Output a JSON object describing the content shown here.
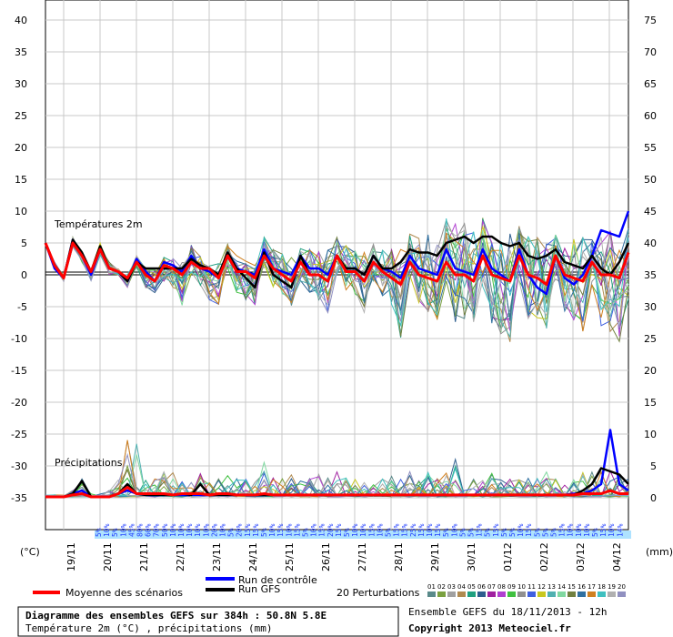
{
  "left_axis": {
    "unit": "(°C)",
    "ticks": [
      "40",
      "35",
      "30",
      "25",
      "20",
      "15",
      "10",
      "5",
      "0",
      "-5",
      "-10",
      "-15",
      "-20",
      "-25",
      "-30",
      "-35"
    ]
  },
  "right_axis": {
    "unit": "(mm)",
    "ticks": [
      "75",
      "70",
      "65",
      "60",
      "55",
      "50",
      "45",
      "40",
      "35",
      "30",
      "25",
      "20",
      "15",
      "10",
      "5",
      "0"
    ]
  },
  "date_labels": [
    "19/11",
    "20/11",
    "21/11",
    "22/11",
    "23/11",
    "24/11",
    "25/11",
    "26/11",
    "27/11",
    "28/11",
    "29/11",
    "30/11",
    "01/12",
    "02/12",
    "03/12",
    "04/12"
  ],
  "percent_labels": [
    "5%",
    "10%",
    "5%",
    "10%",
    "45%",
    "80%",
    "60%",
    "70%",
    "50%",
    "10%",
    "10%",
    "10%",
    "10%",
    "10%",
    "20%",
    "10%",
    "5%",
    "20%",
    "15%",
    "15%",
    "5%",
    "10%",
    "15%",
    "10%",
    "15%",
    "5%",
    "10%",
    "15%",
    "20%",
    "15%",
    "5%",
    "10%",
    "10%",
    "15%",
    "10%",
    "5%",
    "15%",
    "15%",
    "25%",
    "15%",
    "10%",
    "15%",
    "5%",
    "10%",
    "5%",
    "5%",
    "15%",
    "5%",
    "15%",
    "5%",
    "5%",
    "10%",
    "15%",
    "5%",
    "5%",
    "5%",
    "15%",
    "10%",
    "10%",
    "10%",
    "5%",
    "15%",
    "10%",
    "14%"
  ],
  "section_labels": {
    "temperature": "Températures 2m",
    "precipitation": "Précipitations"
  },
  "legend": {
    "mean": "Moyenne des scénarios",
    "control": "Run de contrôle",
    "gfs": "Run GFS",
    "perturbations": "20 Perturbations",
    "perturbation_numbers": [
      "01",
      "02",
      "03",
      "04",
      "05",
      "06",
      "07",
      "08",
      "09",
      "10",
      "11",
      "12",
      "13",
      "14",
      "15",
      "16",
      "17",
      "18",
      "19",
      "20"
    ],
    "perturbation_colors": [
      "#5a8a8a",
      "#7aa040",
      "#a0a0a0",
      "#b08a50",
      "#20a080",
      "#2e5e8e",
      "#a020a0",
      "#b040d0",
      "#40c040",
      "#909090",
      "#4060e0",
      "#c8c820",
      "#50b0b0",
      "#80d8a0",
      "#708040",
      "#3070a0",
      "#d08020",
      "#40c0c0",
      "#b0b0b0",
      "#9090c0"
    ],
    "colors": {
      "mean": "#ff0000",
      "control": "#0000ff",
      "gfs": "#000000"
    }
  },
  "footer": {
    "title": "Diagramme des ensembles GEFS sur 384h : 50.8N 5.8E",
    "subtitle": "Température 2m (°C) , précipitations (mm)",
    "run": "Ensemble GEFS du 18/11/2013 - 12h",
    "copyright": "Copyright 2013 Meteociel.fr"
  },
  "chart_data": {
    "type": "line",
    "x_unit": "6h steps from 18/11/2013 12h",
    "temperature": {
      "ylabel": "(°C)",
      "ylim": [
        -35,
        40
      ],
      "mean": [
        5,
        1.5,
        -0.5,
        5,
        3,
        0.5,
        4,
        1,
        0.5,
        -0.5,
        2,
        0,
        -1,
        1.5,
        1,
        0,
        2,
        1,
        1,
        -0.5,
        3,
        0.5,
        0.5,
        -0.5,
        3,
        1,
        0,
        -1,
        2,
        0,
        0,
        -1,
        3,
        0.5,
        0.5,
        -1,
        2,
        0.5,
        -0.5,
        -1.5,
        2,
        0,
        -0.5,
        -1,
        2,
        0,
        0,
        -1,
        3,
        0,
        -0.5,
        -1,
        3,
        0,
        -0.5,
        -1.5,
        3,
        0,
        -0.5,
        -1,
        2,
        0,
        0,
        -0.5,
        3.5
      ],
      "control": [
        5,
        1,
        -0.5,
        5.5,
        3,
        0,
        4,
        1,
        0.5,
        -1,
        2.5,
        0.5,
        -1,
        2,
        1.5,
        0.5,
        3,
        1,
        0.5,
        -0.5,
        3.5,
        1,
        0.5,
        0,
        4,
        1,
        0.5,
        0,
        3,
        1,
        1,
        0,
        3,
        1,
        1,
        0,
        3,
        1,
        0.5,
        -0.5,
        3,
        1,
        0.5,
        0,
        4,
        1,
        0.5,
        0,
        4,
        1,
        0,
        -1,
        4,
        0,
        -2,
        -3,
        3,
        -0.5,
        -1.5,
        0,
        3,
        7,
        6.5,
        6,
        10
      ],
      "gfs": [
        5,
        1.5,
        -0.5,
        5.5,
        3.5,
        0.5,
        4.5,
        1,
        0.5,
        -1,
        2,
        1,
        1,
        1,
        1,
        1,
        2.5,
        1.5,
        1,
        0,
        3.5,
        1,
        -0.5,
        -2,
        3.5,
        0,
        -1,
        -2,
        3,
        0,
        0,
        -1,
        3,
        1,
        1,
        0,
        3,
        1,
        1,
        2,
        4,
        3.5,
        3.5,
        3,
        5,
        5.5,
        6,
        5,
        6,
        6,
        5,
        4.5,
        5,
        3,
        2.5,
        3,
        4,
        2,
        1.5,
        1,
        3,
        1,
        0,
        2,
        5
      ]
    },
    "precipitation": {
      "ylabel": "(mm)",
      "ylim": [
        0,
        75
      ],
      "mean": [
        0,
        0,
        0,
        0.3,
        0.5,
        0,
        0,
        0,
        0.5,
        1.5,
        0.5,
        0.5,
        0.5,
        0.5,
        0.3,
        0.5,
        0.5,
        0.5,
        0.3,
        0.5,
        0.5,
        0.3,
        0.3,
        0.3,
        0.5,
        0.3,
        0.3,
        0.3,
        0.3,
        0.3,
        0.3,
        0.3,
        0.3,
        0.3,
        0.3,
        0.3,
        0.3,
        0.3,
        0.3,
        0.3,
        0.3,
        0.3,
        0.3,
        0.3,
        0.3,
        0.3,
        0.3,
        0.3,
        0.3,
        0.3,
        0.3,
        0.3,
        0.3,
        0.3,
        0.3,
        0.3,
        0.3,
        0.3,
        0.3,
        0.5,
        0.5,
        0.5,
        1,
        0.5,
        0.5
      ],
      "control": [
        0,
        0,
        0,
        0.5,
        1,
        0,
        0,
        0,
        0.5,
        1,
        0.5,
        0.3,
        0.3,
        0.3,
        0.3,
        0.3,
        0.3,
        0.3,
        0.3,
        0.3,
        0.3,
        0.3,
        0.3,
        0.3,
        0.3,
        0.3,
        0.3,
        0.3,
        0.3,
        0.3,
        0.3,
        0.3,
        0.3,
        0.3,
        0.3,
        0.3,
        0.3,
        0.3,
        0.3,
        0.3,
        0.3,
        0.3,
        0.3,
        0.3,
        0.3,
        0.3,
        0.3,
        0.3,
        0.3,
        0.3,
        0.3,
        0.3,
        0.3,
        0.3,
        0.3,
        0.3,
        0.3,
        0.3,
        0.5,
        0.5,
        1,
        2,
        10.5,
        2,
        1
      ],
      "gfs": [
        0,
        0,
        0,
        0.5,
        2.5,
        0,
        0,
        0,
        0.5,
        2,
        0.5,
        0.3,
        0.3,
        0.3,
        0.3,
        0.5,
        0.3,
        2,
        0.3,
        0.3,
        0.3,
        0.3,
        0.3,
        0.3,
        0.3,
        0.3,
        0.3,
        0.3,
        0.3,
        0.3,
        0.3,
        0.3,
        0.3,
        0.3,
        0.3,
        0.3,
        0.3,
        0.3,
        0.3,
        0.3,
        0.3,
        0.3,
        0.3,
        0.3,
        0.3,
        0.3,
        0.3,
        0.3,
        0.3,
        0.3,
        0.3,
        0.3,
        0.3,
        0.3,
        0.3,
        0.3,
        0.3,
        0.3,
        0.3,
        1,
        2,
        4.5,
        4,
        3.5,
        2
      ]
    },
    "perturbations": {
      "temperature_spread_max": [
        5,
        2,
        0,
        6,
        4,
        1,
        5,
        2,
        1,
        0,
        3,
        1,
        1,
        3,
        3,
        2,
        5,
        3,
        3,
        2,
        5,
        3,
        3,
        2,
        6,
        4,
        4,
        3,
        5,
        4,
        4,
        4,
        6,
        5,
        4,
        4,
        6,
        5,
        4,
        4,
        7,
        6,
        7,
        6,
        9,
        8,
        10,
        8,
        9,
        7,
        8,
        7,
        8,
        6,
        6,
        5,
        7,
        5,
        6,
        6,
        7,
        6,
        7,
        7,
        9
      ],
      "temperature_spread_min": [
        5,
        1,
        -1,
        4,
        2,
        -1,
        3,
        0,
        0,
        -2,
        1,
        -2,
        -3,
        -1,
        -2,
        -5,
        0,
        -2,
        -4,
        -5,
        1,
        -3,
        -4,
        -5,
        1,
        -2,
        -4,
        -5,
        -1,
        -3,
        -4,
        -6,
        0,
        -3,
        -4,
        -6,
        -1,
        -4,
        -5,
        -10,
        -2,
        -5,
        -6,
        -7,
        -1,
        -8,
        -7,
        -9,
        -2,
        -8,
        -10,
        -11,
        -1,
        -7,
        -8,
        -9,
        -1,
        -6,
        -8,
        -9,
        -2,
        -8,
        -9,
        -12,
        -4
      ],
      "precipitation_spread_max": [
        0,
        0,
        0,
        1,
        3,
        0.5,
        0.5,
        1,
        3,
        10,
        9,
        3,
        3,
        4,
        4,
        3,
        3,
        4,
        3,
        3,
        4,
        3,
        3,
        3,
        6,
        3,
        4,
        4,
        3,
        3,
        4,
        3,
        4,
        3,
        3,
        3,
        4,
        3,
        6,
        3,
        4,
        3,
        4,
        3,
        4,
        6,
        3,
        3,
        3,
        4,
        3,
        3,
        3,
        3,
        3,
        4,
        3,
        3,
        3,
        4,
        4,
        5,
        5,
        4,
        3
      ]
    }
  }
}
